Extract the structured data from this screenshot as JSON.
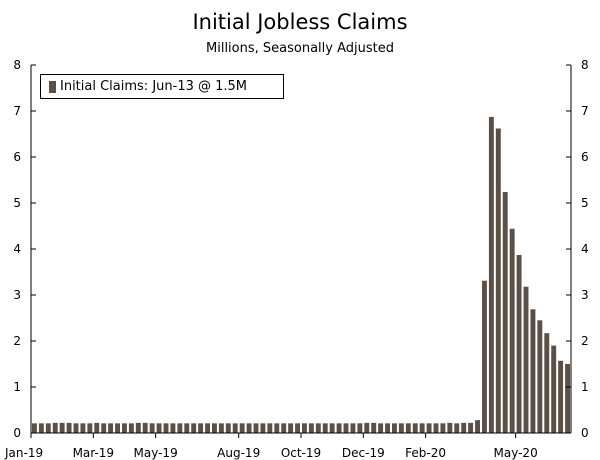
{
  "chart_data": {
    "type": "bar",
    "title": "Initial Jobless Claims",
    "subtitle": "Millions, Seasonally Adjusted",
    "xlabel": "",
    "ylabel": "",
    "ylim": [
      0,
      8
    ],
    "yticks": [
      0,
      1,
      2,
      3,
      4,
      5,
      6,
      7,
      8
    ],
    "xtick_labels": [
      "Jan-19",
      "Mar-19",
      "May-19",
      "Aug-19",
      "Oct-19",
      "Dec-19",
      "Feb-20",
      "May-20"
    ],
    "xtick_positions": [
      0,
      9,
      18,
      30,
      39,
      48,
      57,
      70
    ],
    "legend": "top-left",
    "grid": false,
    "bar_color": "#5c5046",
    "series": [
      {
        "name": "Initial Claims: Jun-13 @ 1.5M",
        "values": [
          0.21,
          0.21,
          0.21,
          0.22,
          0.22,
          0.22,
          0.21,
          0.21,
          0.21,
          0.22,
          0.21,
          0.21,
          0.21,
          0.21,
          0.21,
          0.22,
          0.22,
          0.21,
          0.21,
          0.21,
          0.21,
          0.21,
          0.21,
          0.21,
          0.21,
          0.21,
          0.21,
          0.21,
          0.21,
          0.21,
          0.21,
          0.21,
          0.21,
          0.21,
          0.21,
          0.21,
          0.21,
          0.21,
          0.21,
          0.21,
          0.21,
          0.21,
          0.21,
          0.21,
          0.21,
          0.21,
          0.21,
          0.21,
          0.22,
          0.22,
          0.21,
          0.21,
          0.21,
          0.21,
          0.21,
          0.21,
          0.21,
          0.21,
          0.21,
          0.21,
          0.22,
          0.21,
          0.22,
          0.22,
          0.28,
          3.31,
          6.87,
          6.62,
          5.24,
          4.44,
          3.87,
          3.18,
          2.69,
          2.45,
          2.17,
          1.9,
          1.57,
          1.5
        ]
      }
    ]
  }
}
